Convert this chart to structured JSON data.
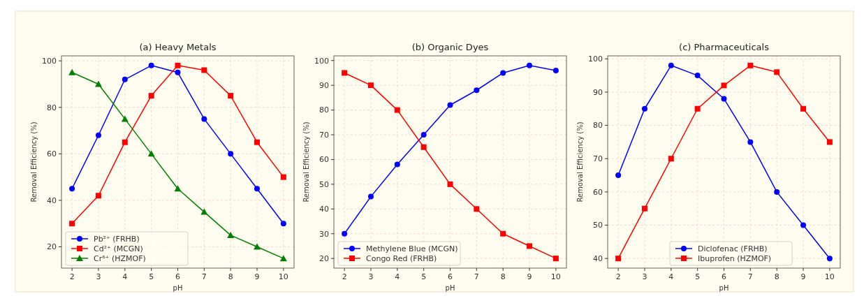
{
  "chart_data": [
    {
      "type": "line",
      "title": "(a) Heavy Metals",
      "xlabel": "pH",
      "ylabel": "Removal Efficiency (%)",
      "x": [
        2,
        3,
        4,
        5,
        6,
        7,
        8,
        9,
        10
      ],
      "xlim": [
        1.6,
        10.4
      ],
      "xticks": [
        2,
        3,
        4,
        5,
        6,
        7,
        8,
        9,
        10
      ],
      "ylim": [
        10.85,
        102.15
      ],
      "yticks": [
        20,
        40,
        60,
        80,
        100
      ],
      "grid": true,
      "legend": "bottom left",
      "line_style": "solid",
      "series": [
        {
          "name": "Pb²⁺ (FRHB)",
          "color": "#0000ff",
          "marker": "circle",
          "values": [
            45,
            68,
            92,
            98,
            95,
            75,
            60,
            45,
            30
          ]
        },
        {
          "name": "Cd²⁺ (MCGN)",
          "color": "#ff0000",
          "marker": "square",
          "values": [
            30,
            42,
            65,
            85,
            98,
            96,
            85,
            65,
            50
          ]
        },
        {
          "name": "Cr⁶⁺ (HZMOF)",
          "color": "#008000",
          "marker": "triangle",
          "values": [
            95,
            90,
            75,
            60,
            45,
            35,
            25,
            20,
            15
          ]
        }
      ]
    },
    {
      "type": "line",
      "title": "(b) Organic Dyes",
      "xlabel": "pH",
      "ylabel": "Removal Efficiency (%)",
      "x": [
        2,
        3,
        4,
        5,
        6,
        7,
        8,
        9,
        10
      ],
      "xlim": [
        1.6,
        10.4
      ],
      "xticks": [
        2,
        3,
        4,
        5,
        6,
        7,
        8,
        9,
        10
      ],
      "ylim": [
        16.1,
        101.9
      ],
      "yticks": [
        20,
        30,
        40,
        50,
        60,
        70,
        80,
        90,
        100
      ],
      "grid": true,
      "legend": "bottom left",
      "line_style": "solid",
      "series": [
        {
          "name": "Methylene Blue (MCGN)",
          "color": "#0000ff",
          "marker": "circle",
          "values": [
            30,
            45,
            58,
            70,
            82,
            88,
            95,
            98,
            96
          ]
        },
        {
          "name": "Congo Red (FRHB)",
          "color": "#ff0000",
          "marker": "square",
          "values": [
            95,
            90,
            80,
            65,
            50,
            40,
            30,
            25,
            20
          ]
        }
      ]
    },
    {
      "type": "line",
      "title": "(c) Pharmaceuticals",
      "xlabel": "pH",
      "ylabel": "Removal Efficiency (%)",
      "x": [
        2,
        3,
        4,
        5,
        6,
        7,
        8,
        9,
        10
      ],
      "xlim": [
        1.6,
        10.4
      ],
      "xticks": [
        2,
        3,
        4,
        5,
        6,
        7,
        8,
        9,
        10
      ],
      "ylim": [
        37.1,
        100.9
      ],
      "yticks": [
        40,
        50,
        60,
        70,
        80,
        90,
        100
      ],
      "grid": true,
      "legend": "bottom",
      "line_style": "solid",
      "series": [
        {
          "name": "Diclofenac (FRHB)",
          "color": "#0000ff",
          "marker": "circle",
          "values": [
            65,
            85,
            98,
            95,
            88,
            75,
            60,
            50,
            40
          ]
        },
        {
          "name": "Ibuprofen (HZMOF)",
          "color": "#ff0000",
          "marker": "square",
          "values": [
            40,
            55,
            70,
            85,
            92,
            98,
            96,
            85,
            75
          ]
        }
      ]
    }
  ]
}
